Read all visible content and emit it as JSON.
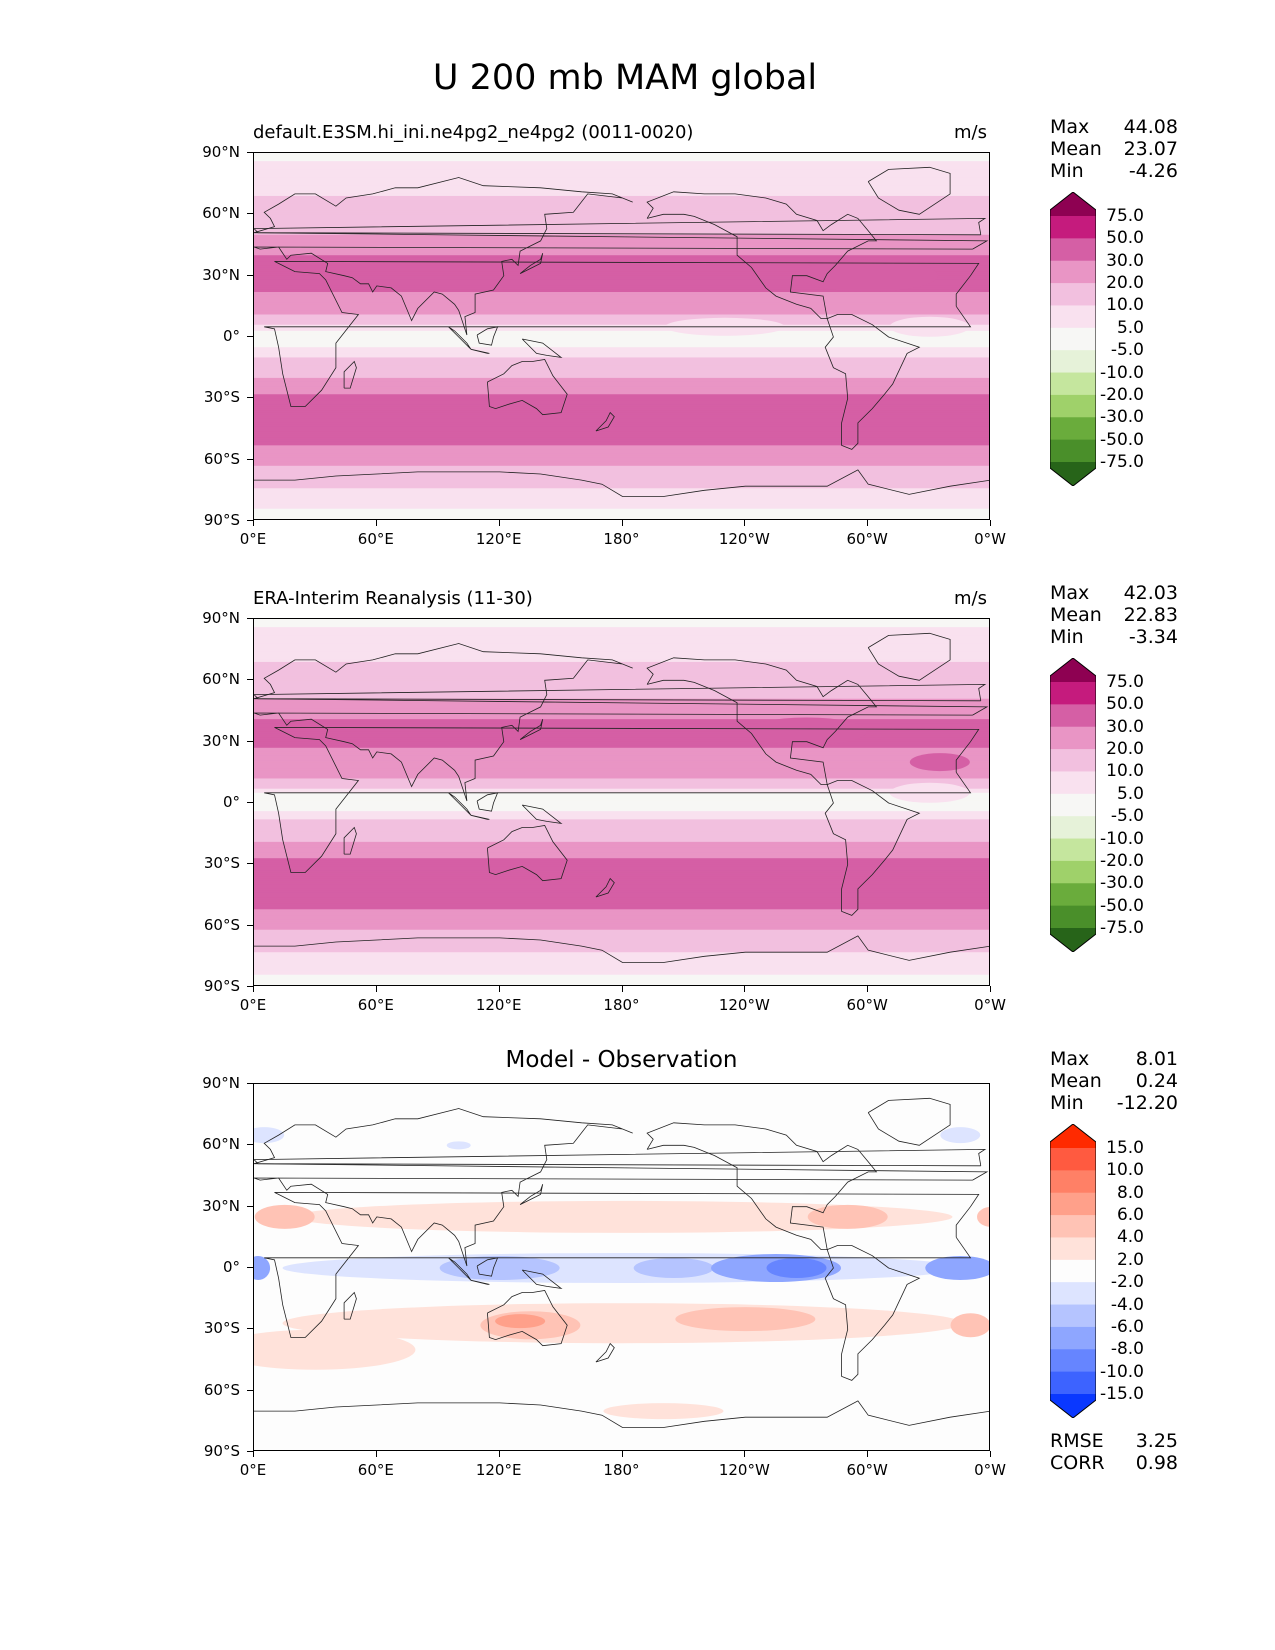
{
  "figure": {
    "title": "U 200 mb MAM global"
  },
  "axes": {
    "lat_labels": [
      "90°N",
      "60°N",
      "30°N",
      "0°",
      "30°S",
      "60°S",
      "90°S"
    ],
    "lon_labels": [
      "0°E",
      "60°E",
      "120°E",
      "180°",
      "120°W",
      "60°W",
      "0°W"
    ]
  },
  "panels": {
    "model": {
      "title": "default.E3SM.hi_ini.ne4pg2_ne4pg2 (0011-0020)",
      "units": "m/s",
      "stats": {
        "max_label": "Max",
        "max": "44.08",
        "mean_label": "Mean",
        "mean": "23.07",
        "min_label": "Min",
        "min": "-4.26"
      },
      "colorbar": {
        "labels": [
          "75.0",
          "50.0",
          "30.0",
          "20.0",
          "10.0",
          "5.0",
          "-5.0",
          "-10.0",
          "-20.0",
          "-30.0",
          "-50.0",
          "-75.0"
        ],
        "colors": [
          "#8e0152",
          "#c51b7d",
          "#d55fa5",
          "#e995c5",
          "#f2c0df",
          "#f9e1ef",
          "#f7f7f5",
          "#e6f2d9",
          "#c5e69e",
          "#9fd16a",
          "#6aac3c",
          "#4a8f2a",
          "#276419"
        ]
      },
      "field": {
        "lat_bands_deg": [
          90,
          75,
          60,
          50,
          40,
          30,
          15,
          5,
          0,
          -5,
          -15,
          -25,
          -35,
          -50,
          -60,
          -70,
          -80,
          -90
        ],
        "zonal_mean_ms": [
          4,
          8,
          13,
          20,
          30,
          32,
          28,
          7,
          -2,
          6,
          14,
          28,
          36,
          32,
          22,
          12,
          6,
          3
        ]
      }
    },
    "obs": {
      "title": "ERA-Interim Reanalysis (11-30)",
      "units": "m/s",
      "stats": {
        "max_label": "Max",
        "max": "42.03",
        "mean_label": "Mean",
        "mean": "22.83",
        "min_label": "Min",
        "min": "-3.34"
      },
      "colorbar": {
        "labels": [
          "75.0",
          "50.0",
          "30.0",
          "20.0",
          "10.0",
          "5.0",
          "-5.0",
          "-10.0",
          "-20.0",
          "-30.0",
          "-50.0",
          "-75.0"
        ],
        "colors": [
          "#8e0152",
          "#c51b7d",
          "#d55fa5",
          "#e995c5",
          "#f2c0df",
          "#f9e1ef",
          "#f7f7f5",
          "#e6f2d9",
          "#c5e69e",
          "#9fd16a",
          "#6aac3c",
          "#4a8f2a",
          "#276419"
        ]
      },
      "field": {
        "lat_bands_deg": [
          90,
          75,
          60,
          50,
          40,
          30,
          15,
          5,
          0,
          -5,
          -15,
          -25,
          -35,
          -50,
          -60,
          -70,
          -80,
          -90
        ],
        "zonal_mean_ms": [
          4,
          8,
          13,
          21,
          31,
          31,
          25,
          4,
          -1,
          8,
          16,
          29,
          35,
          31,
          21,
          11,
          6,
          3
        ]
      }
    },
    "diff": {
      "title": "Model - Observation",
      "stats": {
        "max_label": "Max",
        "max": "8.01",
        "mean_label": "Mean",
        "mean": "0.24",
        "min_label": "Min",
        "min": "-12.20"
      },
      "extra": {
        "rmse_label": "RMSE",
        "rmse": "3.25",
        "corr_label": "CORR",
        "corr": "0.98"
      },
      "colorbar": {
        "labels": [
          "15.0",
          "10.0",
          "8.0",
          "6.0",
          "4.0",
          "2.0",
          "-2.0",
          "-4.0",
          "-6.0",
          "-8.0",
          "-10.0",
          "-15.0"
        ],
        "colors": [
          "#ff2a00",
          "#ff5a40",
          "#ff8066",
          "#ffa08a",
          "#ffc3b5",
          "#ffe2da",
          "#fdfdfd",
          "#dde4ff",
          "#b5c4ff",
          "#8ea6ff",
          "#6685ff",
          "#3d63ff",
          "#0a38ff"
        ]
      }
    }
  }
}
